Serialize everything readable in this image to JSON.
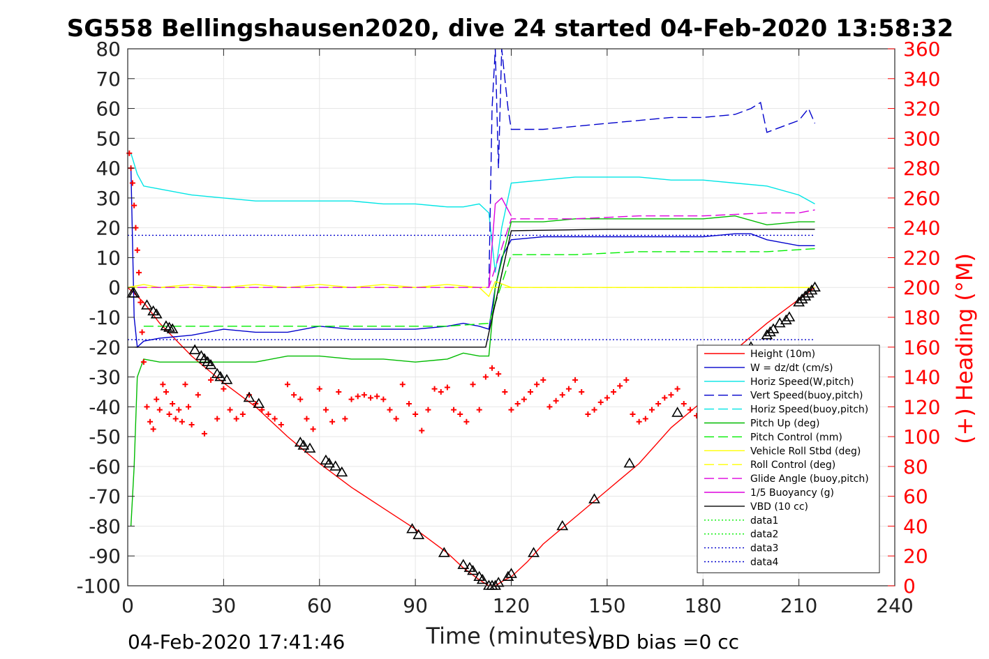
{
  "chart_data": {
    "type": "line",
    "title": "SG558 Bellingshausen2020, dive 24 started 04-Feb-2020 13:58:32",
    "xlabel": "Time (minutes)",
    "ylabel": "",
    "ylabel_right": "(+) Heading (°M)",
    "xlim": [
      0,
      240
    ],
    "ylim": [
      -100,
      80
    ],
    "ylim_right": [
      0,
      360
    ],
    "xticks": [
      "0",
      "30",
      "60",
      "90",
      "120",
      "150",
      "180",
      "210",
      "240"
    ],
    "yticks": [
      "80",
      "70",
      "60",
      "50",
      "40",
      "30",
      "20",
      "10",
      "0",
      "-10",
      "-20",
      "-30",
      "-40",
      "-50",
      "-60",
      "-70",
      "-80",
      "-90",
      "-100"
    ],
    "yticks_right": [
      "360",
      "340",
      "320",
      "300",
      "280",
      "260",
      "240",
      "220",
      "200",
      "180",
      "160",
      "140",
      "120",
      "100",
      "80",
      "60",
      "40",
      "20",
      "0"
    ],
    "grid": true,
    "legend_position": "lower-right",
    "footer_left": "04-Feb-2020 17:41:46",
    "footer_right": "VBD bias =0 cc",
    "series": [
      {
        "name": "Height (10m)",
        "color": "#ff0000",
        "style": "solid",
        "x": [
          0,
          2,
          5,
          10,
          20,
          30,
          40,
          50,
          60,
          70,
          80,
          90,
          100,
          105,
          110,
          113,
          115,
          118,
          120,
          125,
          130,
          140,
          150,
          160,
          170,
          180,
          190,
          200,
          210,
          215
        ],
        "y": [
          0,
          -2,
          -5,
          -12,
          -23,
          -32,
          -40,
          -50,
          -59,
          -67,
          -74,
          -81,
          -89,
          -94,
          -98,
          -100,
          -100,
          -98,
          -97,
          -92,
          -86,
          -77,
          -68,
          -59,
          -47,
          -38,
          -21,
          -12,
          -4,
          0
        ]
      },
      {
        "name": "W = dz/dt (cm/s)",
        "color": "#0000cc",
        "style": "solid",
        "x": [
          1,
          2,
          3,
          5,
          10,
          20,
          30,
          40,
          50,
          60,
          70,
          80,
          90,
          100,
          105,
          110,
          113,
          115,
          117,
          120,
          130,
          140,
          150,
          160,
          170,
          180,
          190,
          195,
          200,
          210,
          215
        ],
        "y": [
          40,
          -10,
          -20,
          -18,
          -17,
          -16,
          -14,
          -15,
          -15,
          -13,
          -14,
          -14,
          -14,
          -13,
          -12,
          -13,
          -14,
          0,
          10,
          16,
          17,
          17,
          17,
          17,
          17,
          17,
          18,
          18,
          16,
          14,
          14
        ]
      },
      {
        "name": "Horiz Speed(W,pitch)",
        "color": "#00e5e5",
        "style": "solid",
        "x": [
          1,
          3,
          5,
          10,
          20,
          30,
          40,
          50,
          60,
          70,
          80,
          90,
          100,
          105,
          110,
          113,
          115,
          117,
          120,
          130,
          140,
          150,
          160,
          170,
          180,
          190,
          200,
          210,
          215
        ],
        "y": [
          45,
          38,
          34,
          33,
          31,
          30,
          29,
          29,
          29,
          29,
          28,
          28,
          27,
          27,
          28,
          25,
          5,
          20,
          35,
          36,
          37,
          37,
          37,
          36,
          36,
          35,
          34,
          31,
          28
        ]
      },
      {
        "name": "Vert Speed(buoy,pitch)",
        "color": "#0000cc",
        "style": "dashed",
        "x": [
          113,
          114,
          115,
          116,
          117,
          118,
          119,
          120,
          125,
          130,
          140,
          150,
          160,
          170,
          180,
          190,
          195,
          198,
          200,
          205,
          210,
          213,
          215
        ],
        "y": [
          0,
          60,
          80,
          40,
          80,
          70,
          60,
          53,
          53,
          53,
          54,
          55,
          56,
          57,
          57,
          58,
          60,
          62,
          52,
          54,
          56,
          60,
          55
        ]
      },
      {
        "name": "Horiz Speed(buoy,pitch)",
        "color": "#00e5e5",
        "style": "dashed",
        "x": [
          0,
          113,
          215
        ],
        "y": [
          0,
          0,
          0
        ]
      },
      {
        "name": "Pitch Up (deg)",
        "color": "#00bb00",
        "style": "solid",
        "x": [
          1,
          2,
          3,
          5,
          10,
          20,
          30,
          40,
          50,
          60,
          70,
          80,
          90,
          100,
          105,
          110,
          113,
          115,
          120,
          130,
          140,
          150,
          160,
          170,
          180,
          190,
          200,
          210,
          215
        ],
        "y": [
          -80,
          -60,
          -30,
          -24,
          -25,
          -25,
          -25,
          -25,
          -23,
          -23,
          -24,
          -24,
          -25,
          -24,
          -22,
          -23,
          -23,
          0,
          22,
          22,
          23,
          23,
          23,
          23,
          23,
          24,
          21,
          22,
          22
        ]
      },
      {
        "name": "Pitch Control (mm)",
        "color": "#00ee00",
        "style": "dashed",
        "x": [
          5,
          20,
          40,
          60,
          80,
          100,
          113,
          120,
          140,
          160,
          180,
          200,
          215
        ],
        "y": [
          -13,
          -13,
          -13,
          -13,
          -13,
          -13,
          -12,
          11,
          11,
          12,
          12,
          12,
          13
        ]
      },
      {
        "name": "Vehicle Roll Stbd (deg)",
        "color": "#ffff00",
        "style": "solid",
        "x": [
          0,
          5,
          10,
          20,
          30,
          40,
          50,
          60,
          70,
          80,
          90,
          100,
          110,
          113,
          115,
          120,
          130,
          140,
          150,
          160,
          170,
          180,
          190,
          200,
          210,
          215
        ],
        "y": [
          0,
          1,
          0,
          1,
          0,
          1,
          0,
          1,
          0,
          1,
          0,
          1,
          0,
          -3,
          2,
          0,
          0,
          0,
          0,
          0,
          0,
          0,
          0,
          0,
          0,
          0
        ]
      },
      {
        "name": "Roll Control (deg)",
        "color": "#ffff00",
        "style": "dashed",
        "x": [
          0,
          215
        ],
        "y": [
          0,
          0
        ]
      },
      {
        "name": "Glide Angle (buoy,pitch)",
        "color": "#dd00dd",
        "style": "dashed",
        "x": [
          3,
          20,
          40,
          60,
          80,
          100,
          113,
          120,
          140,
          160,
          180,
          200,
          210,
          215
        ],
        "y": [
          0,
          0,
          0,
          0,
          0,
          0,
          0,
          23,
          23,
          24,
          24,
          25,
          25,
          26
        ]
      },
      {
        "name": "1/5 Buoyancy (g)",
        "color": "#dd00dd",
        "style": "solid",
        "x": [
          113,
          115,
          117,
          120
        ],
        "y": [
          0,
          28,
          30,
          24
        ]
      },
      {
        "name": "VBD (10 cc)",
        "color": "#000000",
        "style": "solid",
        "x": [
          0,
          2,
          10,
          30,
          60,
          90,
          112,
          120,
          150,
          180,
          215
        ],
        "y": [
          -20,
          -20,
          -20,
          -20,
          -20,
          -20,
          -20,
          19,
          19.5,
          19.5,
          19.5
        ]
      },
      {
        "name": "data1",
        "color": "#00ee00",
        "style": "dotted",
        "x": [],
        "y": []
      },
      {
        "name": "data2",
        "color": "#00ee00",
        "style": "dotted",
        "x": [],
        "y": []
      },
      {
        "name": "data3",
        "color": "#0000cc",
        "style": "dotted",
        "x": [
          0,
          215
        ],
        "y": [
          17.5,
          17.5
        ]
      },
      {
        "name": "data4",
        "color": "#0000cc",
        "style": "dotted",
        "x": [
          0,
          215
        ],
        "y": [
          -17.5,
          -17.5
        ]
      }
    ],
    "heading": {
      "name": "(+) Heading (°M)",
      "color": "#ff0000",
      "marker": "+",
      "x": [
        0.5,
        1,
        1.5,
        2,
        2.5,
        3,
        3.5,
        4,
        4.5,
        5,
        6,
        7,
        8,
        9,
        10,
        11,
        12,
        13,
        14,
        15,
        16,
        17,
        18,
        19,
        20,
        22,
        24,
        26,
        28,
        30,
        32,
        34,
        36,
        38,
        40,
        42,
        44,
        46,
        48,
        50,
        52,
        54,
        56,
        58,
        60,
        62,
        64,
        66,
        68,
        70,
        72,
        74,
        76,
        78,
        80,
        82,
        84,
        86,
        88,
        90,
        92,
        94,
        96,
        98,
        100,
        102,
        104,
        106,
        108,
        110,
        112,
        114,
        116,
        118,
        120,
        122,
        124,
        126,
        128,
        130,
        132,
        134,
        136,
        138,
        140,
        142,
        144,
        146,
        148,
        150,
        152,
        154,
        156,
        158,
        160,
        162,
        164,
        166,
        168,
        170,
        172,
        174,
        176,
        178,
        180
      ],
      "y": [
        290,
        280,
        270,
        255,
        240,
        225,
        210,
        190,
        170,
        150,
        120,
        110,
        105,
        125,
        118,
        135,
        130,
        115,
        122,
        112,
        118,
        110,
        135,
        120,
        108,
        128,
        102,
        138,
        112,
        132,
        118,
        112,
        115,
        128,
        122,
        118,
        115,
        112,
        108,
        135,
        128,
        125,
        112,
        105,
        132,
        118,
        110,
        130,
        112,
        125,
        127,
        128,
        126,
        127,
        125,
        118,
        112,
        135,
        122,
        115,
        104,
        118,
        132,
        130,
        133,
        118,
        115,
        110,
        135,
        118,
        140,
        146,
        142,
        130,
        118,
        122,
        125,
        130,
        135,
        138,
        120,
        124,
        128,
        132,
        138,
        130,
        115,
        118,
        123,
        126,
        130,
        134,
        138,
        115,
        110,
        112,
        118,
        122,
        126,
        128,
        132,
        122,
        118,
        114,
        118
      ]
    },
    "markers": {
      "name": "triangles",
      "color": "#000000",
      "x": [
        1.5,
        2,
        6,
        8,
        9,
        12,
        13,
        14,
        21,
        23,
        24,
        25,
        26,
        28,
        29,
        31,
        38,
        41,
        54,
        55,
        57,
        62,
        63,
        65,
        67,
        89,
        91,
        99,
        105,
        107,
        108,
        110,
        111,
        113,
        114,
        115,
        116,
        119,
        120,
        127,
        136,
        146,
        157,
        172,
        195,
        200,
        201,
        202,
        204,
        206,
        207,
        210,
        211,
        212,
        213,
        214,
        215
      ],
      "y": [
        -2,
        -2,
        -6,
        -8,
        -9,
        -13,
        -13.5,
        -14,
        -21,
        -23,
        -24,
        -25,
        -26,
        -29,
        -30,
        -31,
        -37,
        -39,
        -52,
        -53,
        -54,
        -58,
        -59,
        -60,
        -62,
        -81,
        -83,
        -89,
        -93,
        -94,
        -95,
        -97,
        -98,
        -100,
        -100,
        -100,
        -99,
        -97,
        -96,
        -89,
        -80,
        -71,
        -59,
        -42,
        -20,
        -16,
        -15,
        -14,
        -12,
        -11,
        -10,
        -5,
        -4,
        -3,
        -2,
        -1,
        0
      ]
    }
  }
}
